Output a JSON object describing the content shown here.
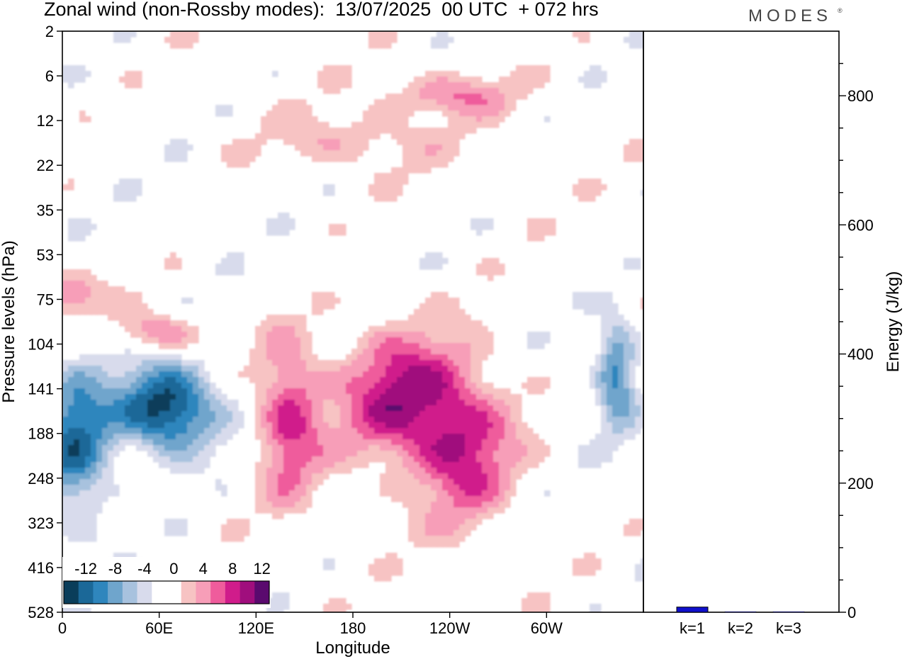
{
  "header": {
    "title": "Zonal wind (non-Rossby modes):  13/07/2025  00 UTC  + 072 hrs",
    "brand": "MODES",
    "brand_mark": "®"
  },
  "chart_data": [
    {
      "type": "heatmap",
      "title": "Zonal wind (non-Rossby modes):  13/07/2025  00 UTC  + 072 hrs",
      "xlabel": "Longitude",
      "ylabel": "Pressure levels (hPa)",
      "x_ticks": [
        "0",
        "60E",
        "120E",
        "180",
        "120W",
        "60W"
      ],
      "x_tick_values": [
        0,
        60,
        120,
        180,
        240,
        300
      ],
      "xlim": [
        0,
        360
      ],
      "y_ticks": [
        "2",
        "6",
        "12",
        "22",
        "35",
        "53",
        "75",
        "104",
        "141",
        "188",
        "248",
        "323",
        "416",
        "528"
      ],
      "colorbar": {
        "labels": [
          "-12",
          "-8",
          "-4",
          "0",
          "4",
          "8",
          "12"
        ],
        "colors": [
          "#0a3d5a",
          "#1b6898",
          "#2f86bd",
          "#6fa5cc",
          "#a8c2de",
          "#d8dbec",
          "#ffffff",
          "#ffffff",
          "#f7c3c3",
          "#f79eb8",
          "#ef5c9c",
          "#d01c8b",
          "#a00e7d",
          "#5a0a6e"
        ]
      },
      "features": [
        {
          "longitude": 65,
          "pressure_hPa": 160,
          "sign": "negative",
          "peak_ms": -14
        },
        {
          "longitude": 8,
          "pressure_hPa": 200,
          "sign": "negative",
          "peak_ms": -10
        },
        {
          "longitude": 343,
          "pressure_hPa": 125,
          "sign": "negative",
          "peak_ms": -9
        },
        {
          "longitude": 140,
          "pressure_hPa": 170,
          "sign": "positive",
          "peak_ms": 9
        },
        {
          "longitude": 210,
          "pressure_hPa": 150,
          "sign": "positive",
          "peak_ms": 10
        },
        {
          "longitude": 250,
          "pressure_hPa": 210,
          "sign": "positive",
          "peak_ms": 8
        },
        {
          "longitude": 60,
          "pressure_hPa": 95,
          "sign": "positive",
          "peak_ms": 7
        },
        {
          "longitude": 5,
          "pressure_hPa": 72,
          "sign": "positive",
          "peak_ms": 7
        },
        {
          "longitude": 180,
          "pressure_hPa": 16,
          "sign": "positive",
          "peak_ms": 4
        },
        {
          "longitude": 240,
          "pressure_hPa": 8,
          "sign": "positive",
          "peak_ms": 6
        }
      ]
    },
    {
      "type": "bar",
      "categories": [
        "k=1",
        "k=2",
        "k=3"
      ],
      "values": [
        8,
        1,
        1
      ],
      "ylabel": "Energy (J/kg)",
      "ylim": [
        0,
        900
      ],
      "y_ticks": [
        "0",
        "200",
        "400",
        "600",
        "800"
      ],
      "bar_color": "#1010cc"
    }
  ]
}
